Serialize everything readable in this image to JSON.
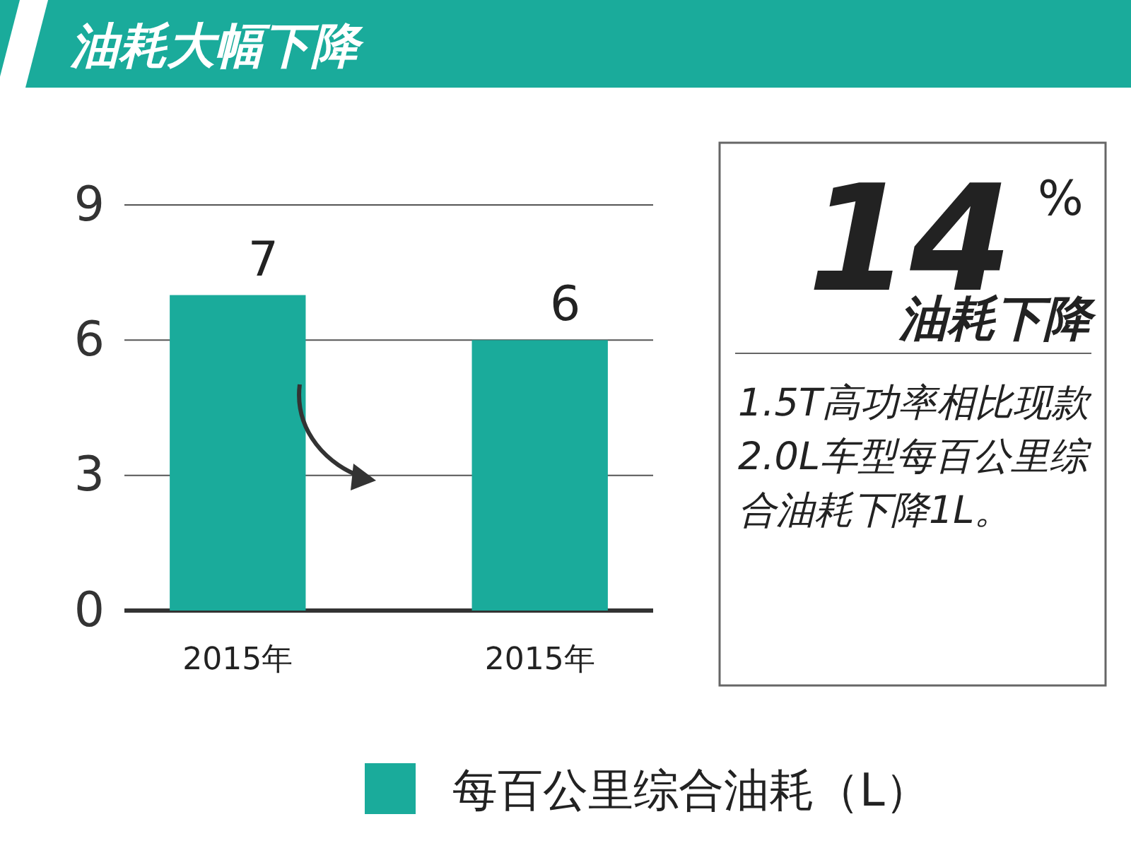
{
  "chart_data": {
    "type": "bar",
    "title": "油耗大幅下降",
    "categories": [
      "2015年",
      "2015年"
    ],
    "series": [
      {
        "name": "每百公里综合油耗（L）",
        "color": "#1aab9b",
        "values": [
          7,
          6
        ]
      }
    ],
    "ylim": [
      0,
      9
    ],
    "yticks": [
      0,
      3,
      6,
      9
    ],
    "grid": "y",
    "data_labels": true,
    "legend": "bottom",
    "annotations": [
      "14",
      "%",
      "油耗下降",
      "1.5T高功率相比现款2.0L车型每百公里综合油耗下降1L。"
    ]
  }
}
